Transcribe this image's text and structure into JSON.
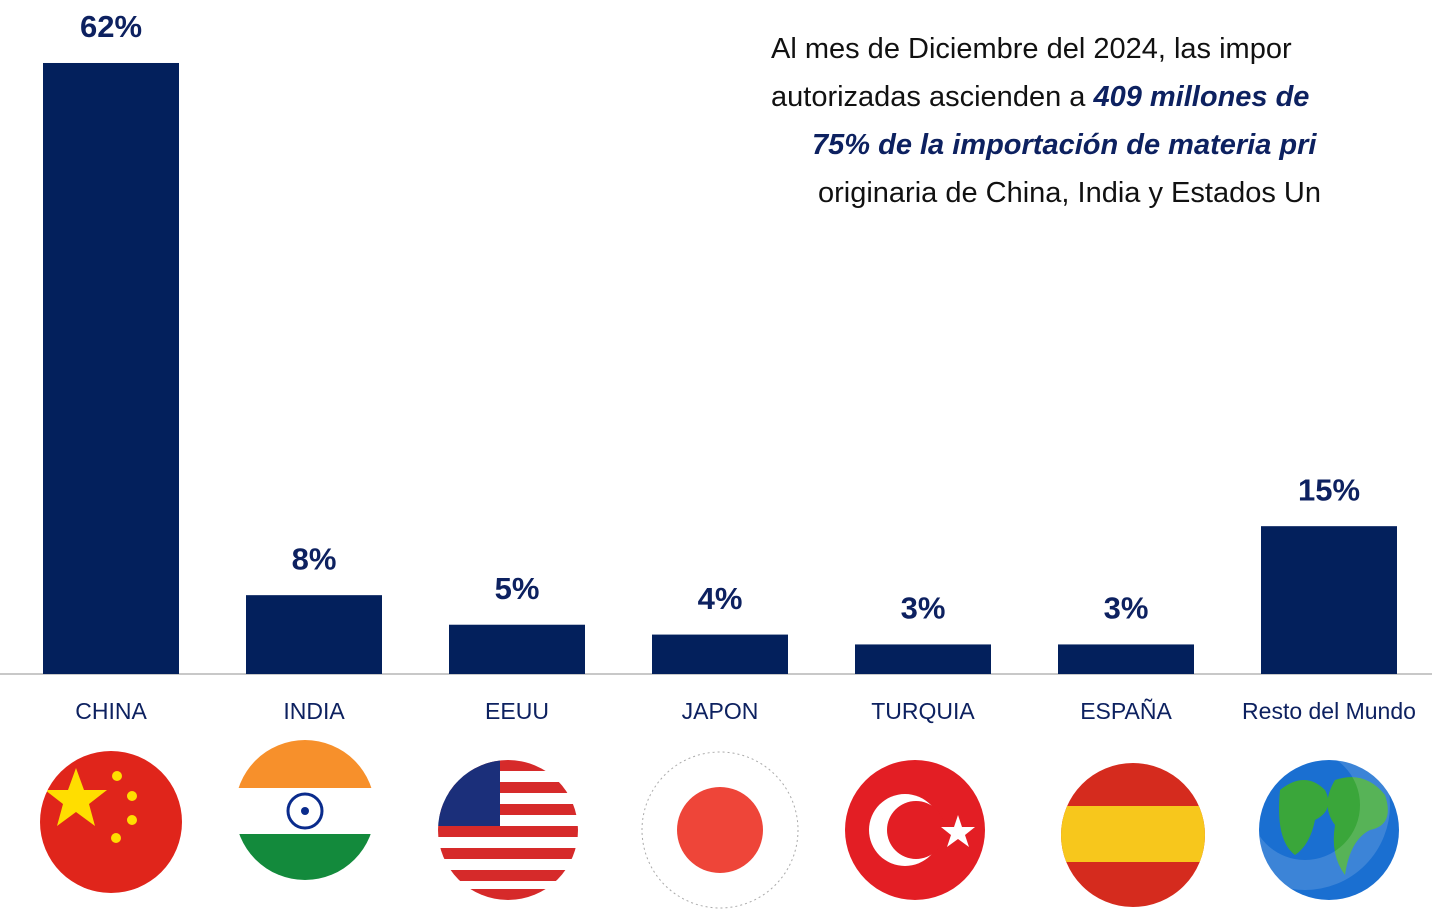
{
  "chart_data": {
    "type": "bar",
    "categories": [
      "CHINA",
      "INDIA",
      "EEUU",
      "JAPON",
      "TURQUIA",
      "ESPAÑA",
      "Resto del Mundo"
    ],
    "values": [
      62,
      8,
      5,
      4,
      3,
      3,
      15
    ],
    "value_labels": [
      "62%",
      "8%",
      "5%",
      "4%",
      "3%",
      "3%",
      "15%"
    ],
    "color": "#03205c",
    "annotation": [
      [
        {
          "text": "Al mes de Diciembre del 2024, las impor",
          "strong": false
        }
      ],
      [
        {
          "text": "autorizadas ascienden a ",
          "strong": false
        },
        {
          "text": "409 millones de",
          "strong": true
        }
      ],
      [
        {
          "text": "75% de la importación de materia pri",
          "strong": true
        }
      ],
      [
        {
          "text": "originaria de China, India y Estados Un",
          "strong": false
        }
      ]
    ]
  }
}
